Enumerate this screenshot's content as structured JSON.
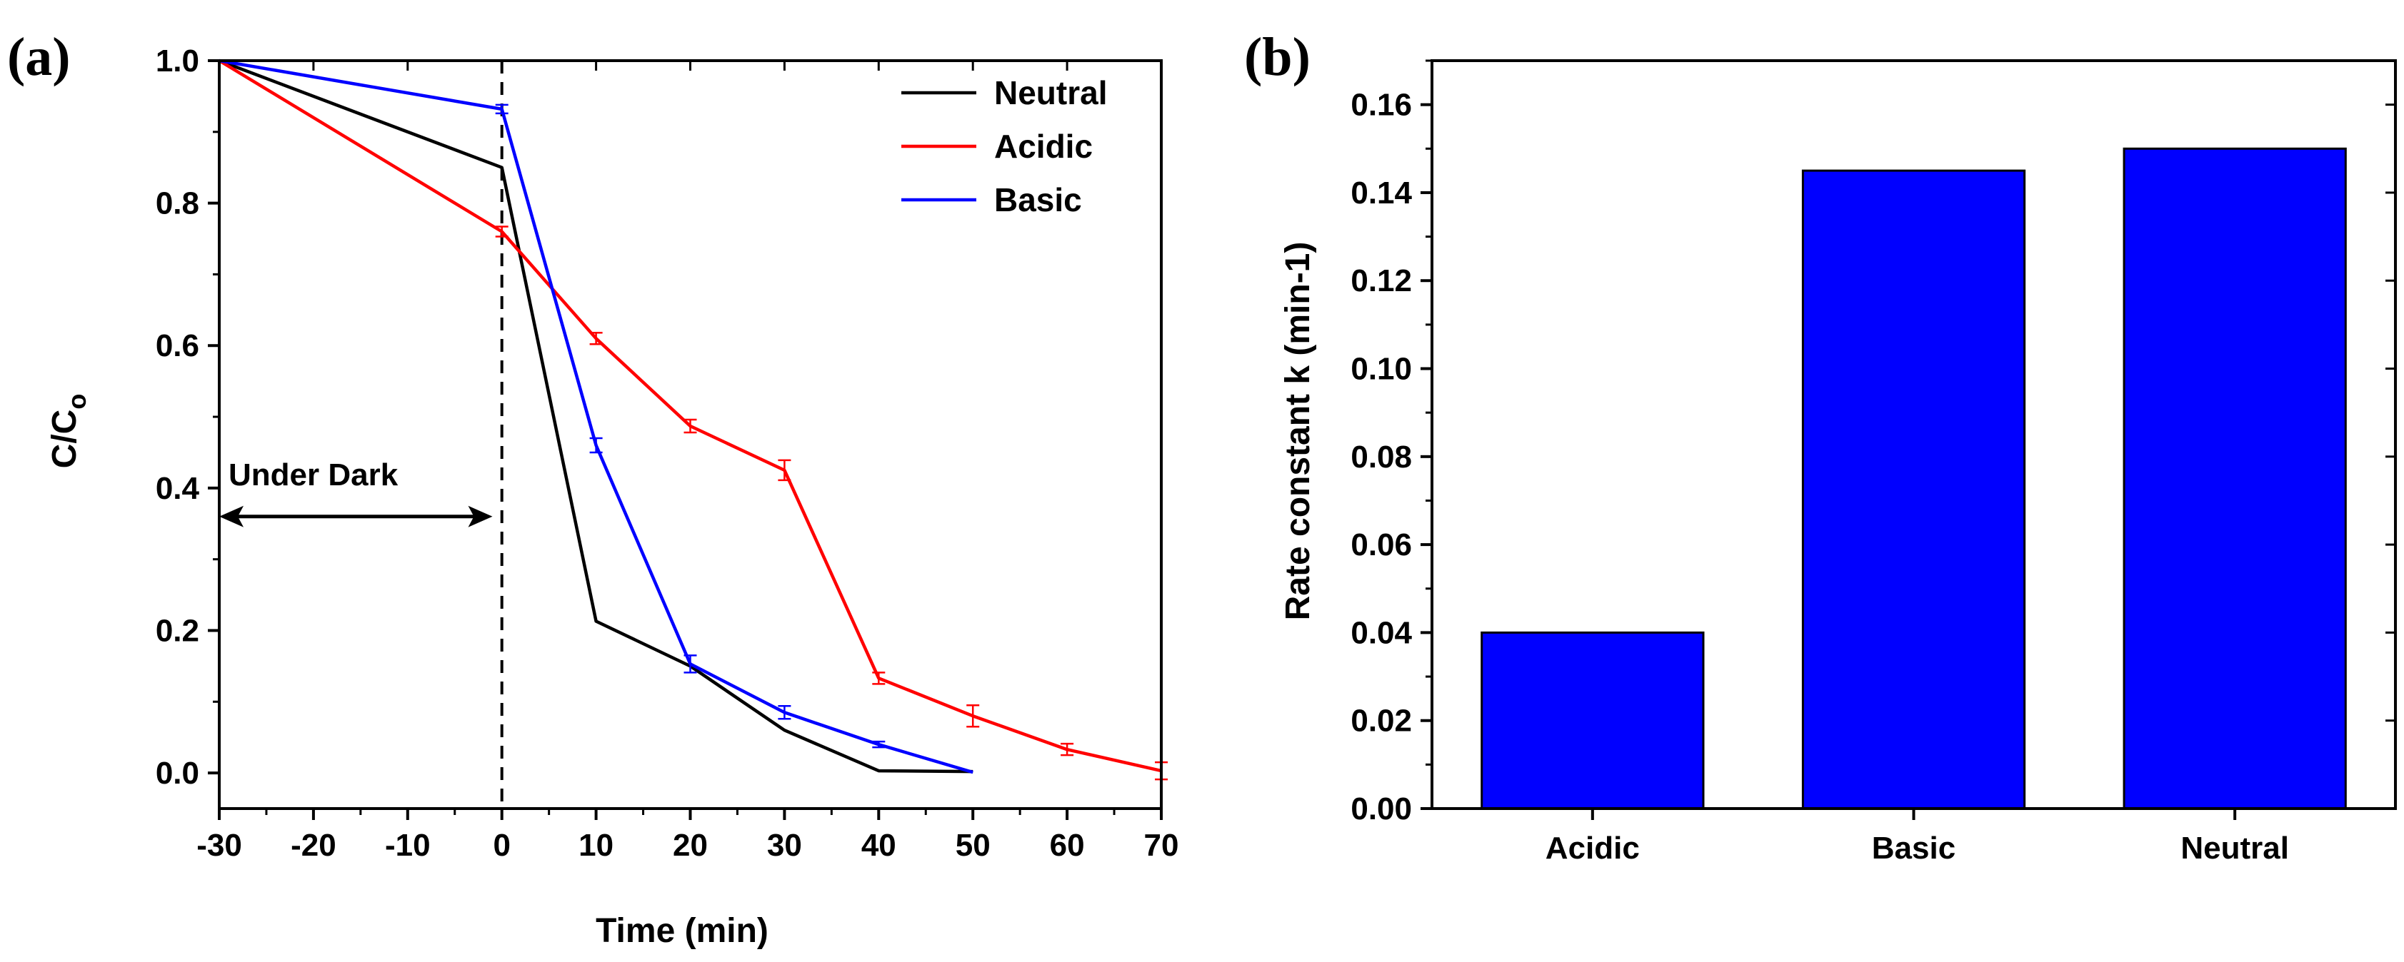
{
  "chart_data": [
    {
      "panel_label": "(a)",
      "type": "line",
      "xlabel": "Time (min)",
      "ylabel": "C/C",
      "ylabel_sub": "o",
      "xlim": [
        -30,
        70
      ],
      "ylim": [
        -0.05,
        1.0
      ],
      "xticks": [
        -30,
        -20,
        -10,
        0,
        10,
        20,
        30,
        40,
        50,
        60,
        70
      ],
      "yticks": [
        "0.0",
        "0.2",
        "0.4",
        "0.6",
        "0.8",
        "1.0"
      ],
      "legend_position": "top-right",
      "series": [
        {
          "name": "Neutral",
          "color": "#000000",
          "x": [
            -30,
            0,
            10,
            20,
            30,
            40,
            50
          ],
          "y": [
            1.0,
            0.85,
            0.213,
            0.15,
            0.06,
            0.003,
            0.002
          ],
          "err": [
            0,
            0,
            0,
            0,
            0,
            0,
            0
          ]
        },
        {
          "name": "Acidic",
          "color": "#ff0000",
          "x": [
            -30,
            0,
            10,
            20,
            30,
            40,
            50,
            60,
            70
          ],
          "y": [
            1.0,
            0.76,
            0.61,
            0.487,
            0.425,
            0.133,
            0.08,
            0.033,
            0.003
          ],
          "err": [
            0,
            0.007,
            0.008,
            0.009,
            0.014,
            0.008,
            0.015,
            0.008,
            0.012
          ]
        },
        {
          "name": "Basic",
          "color": "#0000ff",
          "x": [
            -30,
            0,
            10,
            20,
            30,
            40,
            50
          ],
          "y": [
            1.0,
            0.932,
            0.46,
            0.153,
            0.085,
            0.04,
            0.001
          ],
          "err": [
            0,
            0.006,
            0.01,
            0.012,
            0.009,
            0.004,
            0
          ]
        }
      ],
      "annotations": [
        {
          "text": "Under Dark",
          "arrow_from_x": -30,
          "arrow_to_x": -1,
          "y": 0.36
        }
      ],
      "vline_x": 0
    },
    {
      "panel_label": "(b)",
      "type": "bar",
      "categories": [
        "Acidic",
        "Basic",
        "Neutral"
      ],
      "values": [
        0.04,
        0.145,
        0.15
      ],
      "bar_color": "#0000ff",
      "ylabel": "Rate constant k (min-1)",
      "xlabel": "",
      "ylim": [
        0,
        0.17
      ],
      "yticks": [
        "0.00",
        "0.02",
        "0.04",
        "0.06",
        "0.08",
        "0.10",
        "0.12",
        "0.14",
        "0.16"
      ]
    }
  ]
}
